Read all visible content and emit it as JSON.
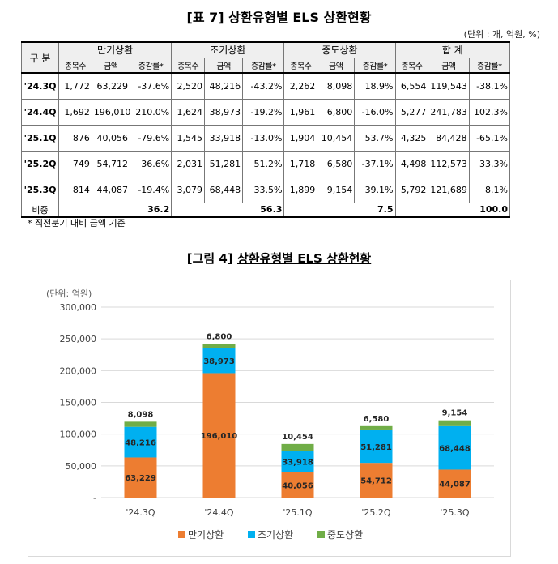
{
  "table": {
    "title_prefix": "[표 7]",
    "title_main": "상환유형별 ELS 상환현황",
    "unit": "(단위 : 개, 억원, %)",
    "row_header": "구 분",
    "groups": [
      "만기상환",
      "조기상환",
      "중도상환",
      "합 계"
    ],
    "sub_headers": [
      "종목수",
      "금액",
      "증감률*"
    ],
    "rows": [
      {
        "label": "'24.3Q",
        "cells": [
          "1,772",
          "63,229",
          "-37.6%",
          "2,520",
          "48,216",
          "-43.2%",
          "2,262",
          "8,098",
          "18.9%",
          "6,554",
          "119,543",
          "-38.1%"
        ]
      },
      {
        "label": "'24.4Q",
        "cells": [
          "1,692",
          "196,010",
          "210.0%",
          "1,624",
          "38,973",
          "-19.2%",
          "1,961",
          "6,800",
          "-16.0%",
          "5,277",
          "241,783",
          "102.3%"
        ]
      },
      {
        "label": "'25.1Q",
        "cells": [
          "876",
          "40,056",
          "-79.6%",
          "1,545",
          "33,918",
          "-13.0%",
          "1,904",
          "10,454",
          "53.7%",
          "4,325",
          "84,428",
          "-65.1%"
        ]
      },
      {
        "label": "'25.2Q",
        "cells": [
          "749",
          "54,712",
          "36.6%",
          "2,031",
          "51,281",
          "51.2%",
          "1,718",
          "6,580",
          "-37.1%",
          "4,498",
          "112,573",
          "33.3%"
        ]
      },
      {
        "label": "'25.3Q",
        "cells": [
          "814",
          "44,087",
          "-19.4%",
          "3,079",
          "68,448",
          "33.5%",
          "1,899",
          "9,154",
          "39.1%",
          "5,792",
          "121,689",
          "8.1%"
        ]
      }
    ],
    "share_label": "비중",
    "share_values": [
      "36.2",
      "56.3",
      "7.5",
      "100.0"
    ],
    "note": "* 직전분기 대비 금액 기준"
  },
  "figure": {
    "title_prefix": "[그림 4]",
    "title_main": "상환유형별 ELS 상환현황"
  },
  "chart_data": {
    "type": "bar",
    "stacked": true,
    "unit_label": "(단위: 억원)",
    "categories": [
      "'24.3Q",
      "'24.4Q",
      "'25.1Q",
      "'25.2Q",
      "'25.3Q"
    ],
    "series": [
      {
        "name": "만기상환",
        "color": "#ed7d31",
        "values": [
          63229,
          196010,
          40056,
          54712,
          44087
        ],
        "labels": [
          "63,229",
          "196,010",
          "40,056",
          "54,712",
          "44,087"
        ]
      },
      {
        "name": "조기상환",
        "color": "#00b0f0",
        "values": [
          48216,
          38973,
          33918,
          51281,
          68448
        ],
        "labels": [
          "48,216",
          "38,973",
          "33,918",
          "51,281",
          "68,448"
        ]
      },
      {
        "name": "중도상환",
        "color": "#70ad47",
        "values": [
          8098,
          6800,
          10454,
          6580,
          9154
        ],
        "labels": [
          "8,098",
          "6,800",
          "10,454",
          "6,580",
          "9,154"
        ]
      }
    ],
    "ylim": [
      0,
      300000
    ],
    "yticks": [
      0,
      50000,
      100000,
      150000,
      200000,
      250000,
      300000
    ],
    "ytick_labels": [
      "-",
      "50,000",
      "100,000",
      "150,000",
      "200,000",
      "250,000",
      "300,000"
    ],
    "grid": true,
    "legend": "bottom"
  }
}
